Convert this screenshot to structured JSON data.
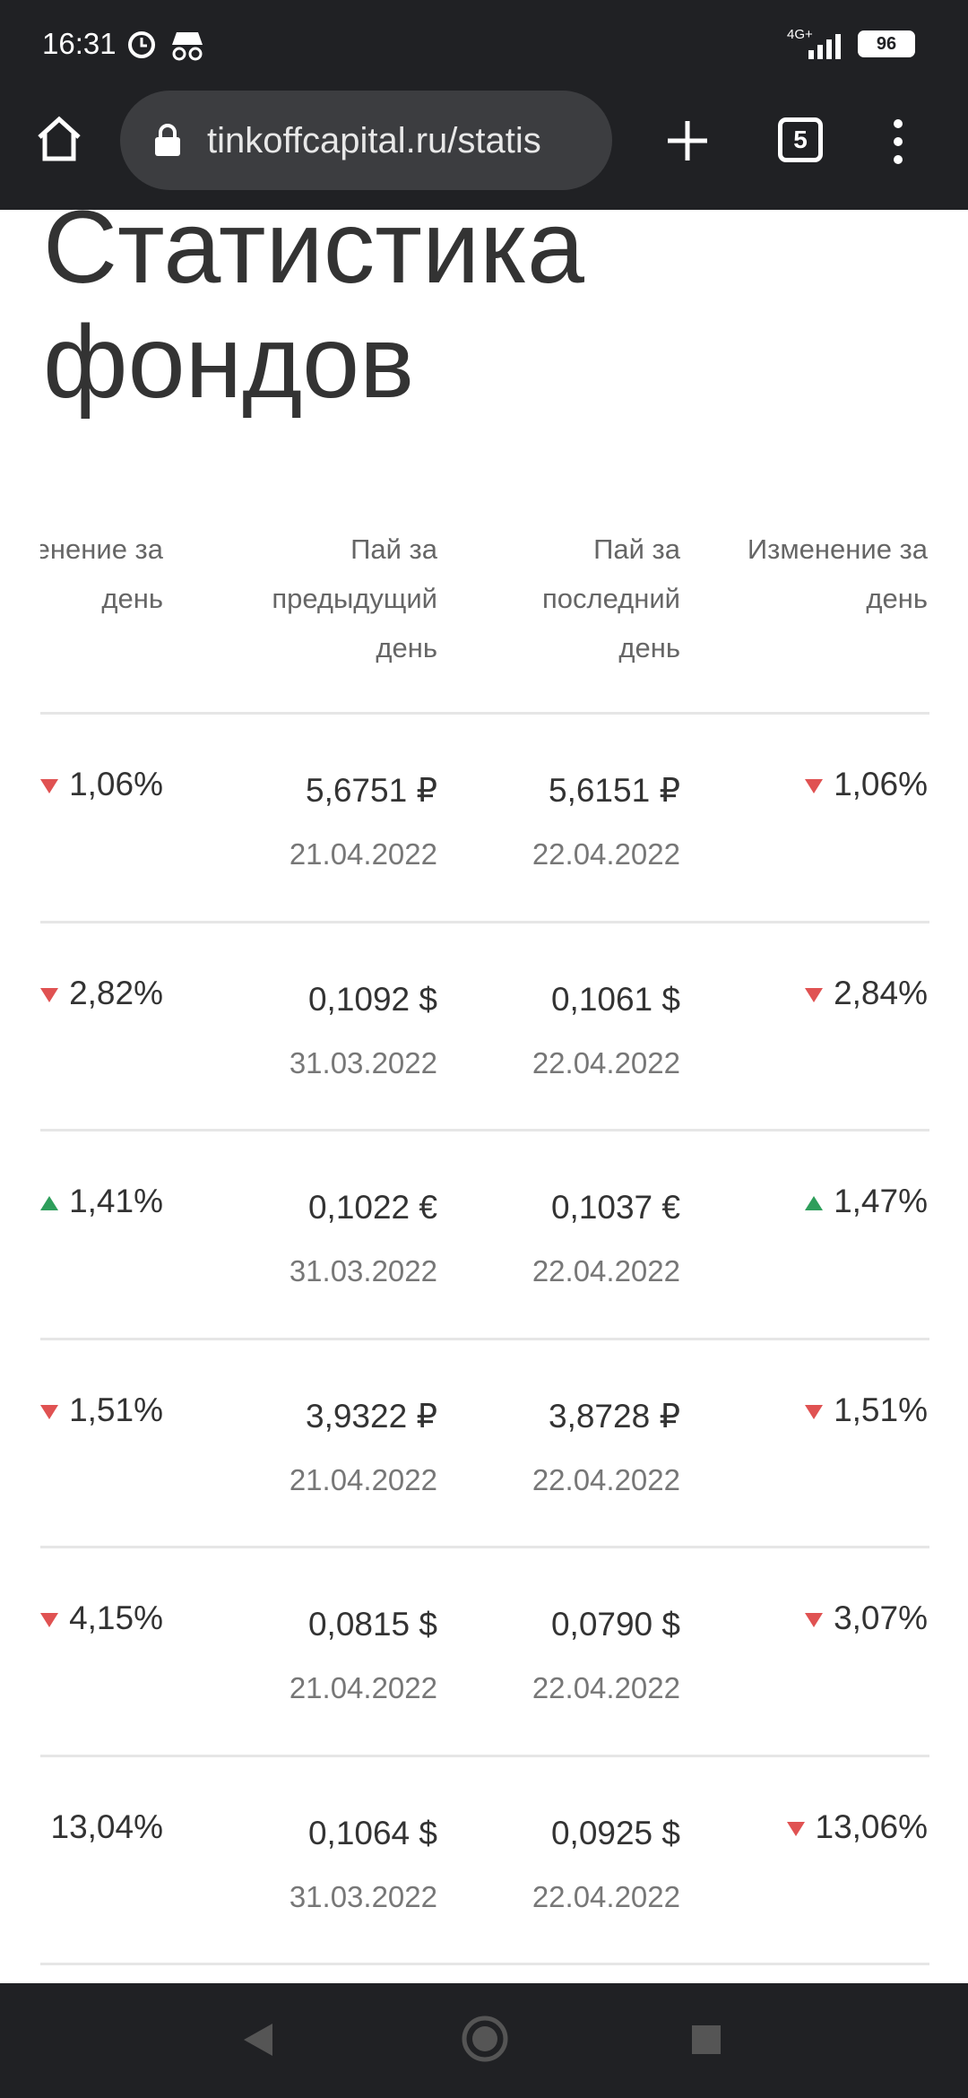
{
  "status_bar": {
    "time": "16:31",
    "network": "4G+",
    "battery": "96"
  },
  "browser": {
    "url": "tinkoffcapital.ru/statis",
    "tab_count": "5"
  },
  "page": {
    "title": "Статистика фондов"
  },
  "table": {
    "headers": [
      "Изменение за день",
      "Пай за предыдущий день",
      "Пай за последний день",
      "Изменение за день"
    ],
    "rows": [
      {
        "change_prev": {
          "direction": "down",
          "text": "1,06%"
        },
        "prev_price": "5,6751 ₽",
        "prev_date": "21.04.2022",
        "last_price": "5,6151 ₽",
        "last_date": "22.04.2022",
        "change": {
          "direction": "down",
          "text": "1,06%"
        }
      },
      {
        "change_prev": {
          "direction": "down",
          "text": "2,82%"
        },
        "prev_price": "0,1092 $",
        "prev_date": "31.03.2022",
        "last_price": "0,1061 $",
        "last_date": "22.04.2022",
        "change": {
          "direction": "down",
          "text": "2,84%"
        }
      },
      {
        "change_prev": {
          "direction": "up",
          "text": "1,41%"
        },
        "prev_price": "0,1022 €",
        "prev_date": "31.03.2022",
        "last_price": "0,1037 €",
        "last_date": "22.04.2022",
        "change": {
          "direction": "up",
          "text": "1,47%"
        }
      },
      {
        "change_prev": {
          "direction": "down",
          "text": "1,51%"
        },
        "prev_price": "3,9322 ₽",
        "prev_date": "21.04.2022",
        "last_price": "3,8728 ₽",
        "last_date": "22.04.2022",
        "change": {
          "direction": "down",
          "text": "1,51%"
        }
      },
      {
        "change_prev": {
          "direction": "down",
          "text": "4,15%"
        },
        "prev_price": "0,0815 $",
        "prev_date": "21.04.2022",
        "last_price": "0,0790 $",
        "last_date": "22.04.2022",
        "change": {
          "direction": "down",
          "text": "3,07%"
        }
      },
      {
        "change_prev": {
          "direction": "down",
          "text": "13,04%"
        },
        "prev_price": "0,1064 $",
        "prev_date": "31.03.2022",
        "last_price": "0,0925 $",
        "last_date": "22.04.2022",
        "change": {
          "direction": "down",
          "text": "13,06%"
        }
      }
    ]
  }
}
